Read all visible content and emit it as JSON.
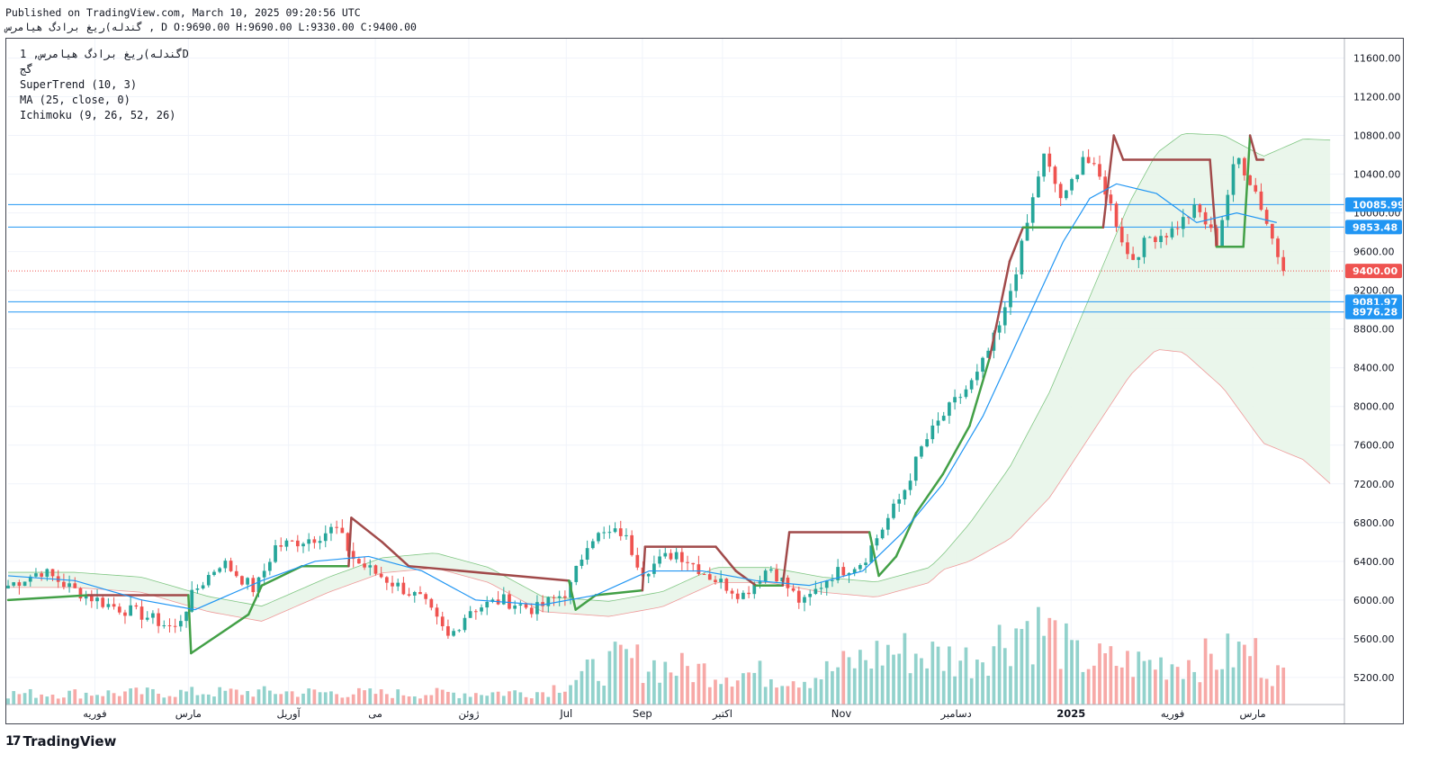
{
  "header": {
    "published": "Published on TradingView.com, March 10, 2025 09:20:56 UTC",
    "ohlc_line": "گندله)ریغ برادگ هیامرس , D O:9690.00 H:9690.00 L:9330.00 C:9400.00"
  },
  "legend": {
    "symbol": "گندله)ریغ برادگ هیامرس, 1D",
    "exchange": "گج",
    "supertrend": "SuperTrend (10, 3)",
    "ma": "MA (25, close, 0)",
    "ichimoku": "Ichimoku (9, 26, 52, 26)"
  },
  "logo": {
    "text": "TradingView",
    "mark": "17"
  },
  "colors": {
    "up": "#26a69a",
    "down": "#ef5350",
    "supertrend_up": "#43a047",
    "supertrend_down": "#a14a4a",
    "ma": "#2196f3",
    "cloud_bull": "#e8f5e9",
    "cloud_bear": "#fdecea",
    "hline": "#2196f3",
    "last_price": "#ef5350",
    "grid": "#f0f3fa"
  },
  "chart_data": {
    "type": "candlestick",
    "y_axis": {
      "ticks": [
        5200,
        5600,
        6000,
        6400,
        6800,
        7200,
        7600,
        8000,
        8400,
        8800,
        9200,
        9600,
        10000,
        10400,
        10800,
        11200,
        11600
      ],
      "ylim": [
        4920,
        11800
      ]
    },
    "x_axis": {
      "labels": [
        {
          "label": "فوریه",
          "t": 0.065
        },
        {
          "label": "مارس",
          "t": 0.135
        },
        {
          "label": "آوریل",
          "t": 0.21
        },
        {
          "label": "می",
          "t": 0.275
        },
        {
          "label": "ژوئن",
          "t": 0.345
        },
        {
          "label": "Jul",
          "t": 0.418
        },
        {
          "label": "Sep",
          "t": 0.475
        },
        {
          "label": "اکتبر",
          "t": 0.535
        },
        {
          "label": "Nov",
          "t": 0.624
        },
        {
          "label": "دسامبر",
          "t": 0.71
        },
        {
          "label": "2025",
          "t": 0.796
        },
        {
          "label": "فوریه",
          "t": 0.872
        },
        {
          "label": "مارس",
          "t": 0.932
        }
      ]
    },
    "price_tags": [
      {
        "value": 10085.99,
        "label": "10085.99",
        "kind": "level"
      },
      {
        "value": 9853.48,
        "label": "9853.48",
        "kind": "level"
      },
      {
        "value": 9400.0,
        "label": "9400.00",
        "kind": "last"
      },
      {
        "value": 9081.97,
        "label": "9081.97",
        "kind": "level"
      },
      {
        "value": 8976.28,
        "label": "8976.28",
        "kind": "level"
      }
    ],
    "close_anchors": [
      [
        0,
        6150
      ],
      [
        0.025,
        6300
      ],
      [
        0.05,
        6100
      ],
      [
        0.075,
        5950
      ],
      [
        0.1,
        5850
      ],
      [
        0.125,
        5700
      ],
      [
        0.14,
        6100
      ],
      [
        0.16,
        6400
      ],
      [
        0.185,
        6100
      ],
      [
        0.2,
        6550
      ],
      [
        0.23,
        6650
      ],
      [
        0.245,
        6750
      ],
      [
        0.26,
        6400
      ],
      [
        0.285,
        6200
      ],
      [
        0.31,
        6000
      ],
      [
        0.33,
        5600
      ],
      [
        0.345,
        5900
      ],
      [
        0.37,
        6000
      ],
      [
        0.395,
        5900
      ],
      [
        0.42,
        6100
      ],
      [
        0.435,
        6650
      ],
      [
        0.46,
        6700
      ],
      [
        0.475,
        6300
      ],
      [
        0.5,
        6500
      ],
      [
        0.525,
        6250
      ],
      [
        0.55,
        6050
      ],
      [
        0.57,
        6350
      ],
      [
        0.595,
        5950
      ],
      [
        0.615,
        6250
      ],
      [
        0.64,
        6400
      ],
      [
        0.655,
        6750
      ],
      [
        0.67,
        7100
      ],
      [
        0.685,
        7600
      ],
      [
        0.7,
        7900
      ],
      [
        0.725,
        8300
      ],
      [
        0.745,
        8900
      ],
      [
        0.76,
        9700
      ],
      [
        0.775,
        10600
      ],
      [
        0.79,
        10100
      ],
      [
        0.805,
        10600
      ],
      [
        0.82,
        10300
      ],
      [
        0.84,
        9500
      ],
      [
        0.855,
        9750
      ],
      [
        0.87,
        9800
      ],
      [
        0.89,
        10050
      ],
      [
        0.905,
        9700
      ],
      [
        0.92,
        10600
      ],
      [
        0.935,
        10200
      ],
      [
        0.955,
        9400
      ]
    ],
    "volume_anchors": [
      [
        0,
        0.12
      ],
      [
        0.1,
        0.13
      ],
      [
        0.2,
        0.14
      ],
      [
        0.3,
        0.12
      ],
      [
        0.4,
        0.14
      ],
      [
        0.46,
        0.5
      ],
      [
        0.5,
        0.4
      ],
      [
        0.6,
        0.3
      ],
      [
        0.66,
        0.6
      ],
      [
        0.72,
        0.5
      ],
      [
        0.74,
        0.7
      ],
      [
        0.76,
        0.9
      ],
      [
        0.78,
        0.8
      ],
      [
        0.8,
        0.5
      ],
      [
        0.85,
        0.45
      ],
      [
        0.9,
        0.5
      ],
      [
        0.93,
        0.6
      ],
      [
        0.955,
        0.3
      ]
    ],
    "series": [
      {
        "name": "SuperTrend (10, 3)",
        "points": [
          [
            0,
            6000
          ],
          [
            0.06,
            6050
          ],
          [
            0.135,
            6050
          ],
          [
            0.137,
            5450
          ],
          [
            0.18,
            5850
          ],
          [
            0.19,
            6150
          ],
          [
            0.22,
            6350
          ],
          [
            0.255,
            6350
          ],
          [
            0.257,
            6850
          ],
          [
            0.28,
            6600
          ],
          [
            0.3,
            6350
          ],
          [
            0.42,
            6200
          ],
          [
            0.425,
            5900
          ],
          [
            0.44,
            6050
          ],
          [
            0.475,
            6100
          ],
          [
            0.477,
            6550
          ],
          [
            0.53,
            6550
          ],
          [
            0.545,
            6300
          ],
          [
            0.56,
            6150
          ],
          [
            0.58,
            6150
          ],
          [
            0.585,
            6700
          ],
          [
            0.645,
            6700
          ],
          [
            0.652,
            6250
          ],
          [
            0.665,
            6450
          ],
          [
            0.68,
            6900
          ],
          [
            0.7,
            7300
          ],
          [
            0.72,
            7800
          ],
          [
            0.735,
            8500
          ],
          [
            0.75,
            9500
          ],
          [
            0.76,
            9850
          ],
          [
            0.82,
            9850
          ],
          [
            0.828,
            10800
          ],
          [
            0.835,
            10550
          ],
          [
            0.9,
            10550
          ],
          [
            0.905,
            9650
          ],
          [
            0.925,
            9650
          ],
          [
            0.93,
            10800
          ],
          [
            0.935,
            10550
          ],
          [
            0.94,
            10550
          ]
        ]
      },
      {
        "name": "MA (25, close, 0)",
        "points": [
          [
            0,
            6250
          ],
          [
            0.05,
            6200
          ],
          [
            0.1,
            6000
          ],
          [
            0.14,
            5900
          ],
          [
            0.19,
            6200
          ],
          [
            0.23,
            6400
          ],
          [
            0.27,
            6450
          ],
          [
            0.31,
            6300
          ],
          [
            0.35,
            6000
          ],
          [
            0.4,
            5950
          ],
          [
            0.44,
            6050
          ],
          [
            0.48,
            6300
          ],
          [
            0.52,
            6300
          ],
          [
            0.56,
            6200
          ],
          [
            0.6,
            6150
          ],
          [
            0.64,
            6300
          ],
          [
            0.67,
            6700
          ],
          [
            0.7,
            7200
          ],
          [
            0.73,
            7900
          ],
          [
            0.76,
            8800
          ],
          [
            0.79,
            9700
          ],
          [
            0.81,
            10150
          ],
          [
            0.83,
            10300
          ],
          [
            0.86,
            10200
          ],
          [
            0.89,
            9900
          ],
          [
            0.92,
            10000
          ],
          [
            0.95,
            9900
          ]
        ]
      }
    ]
  }
}
